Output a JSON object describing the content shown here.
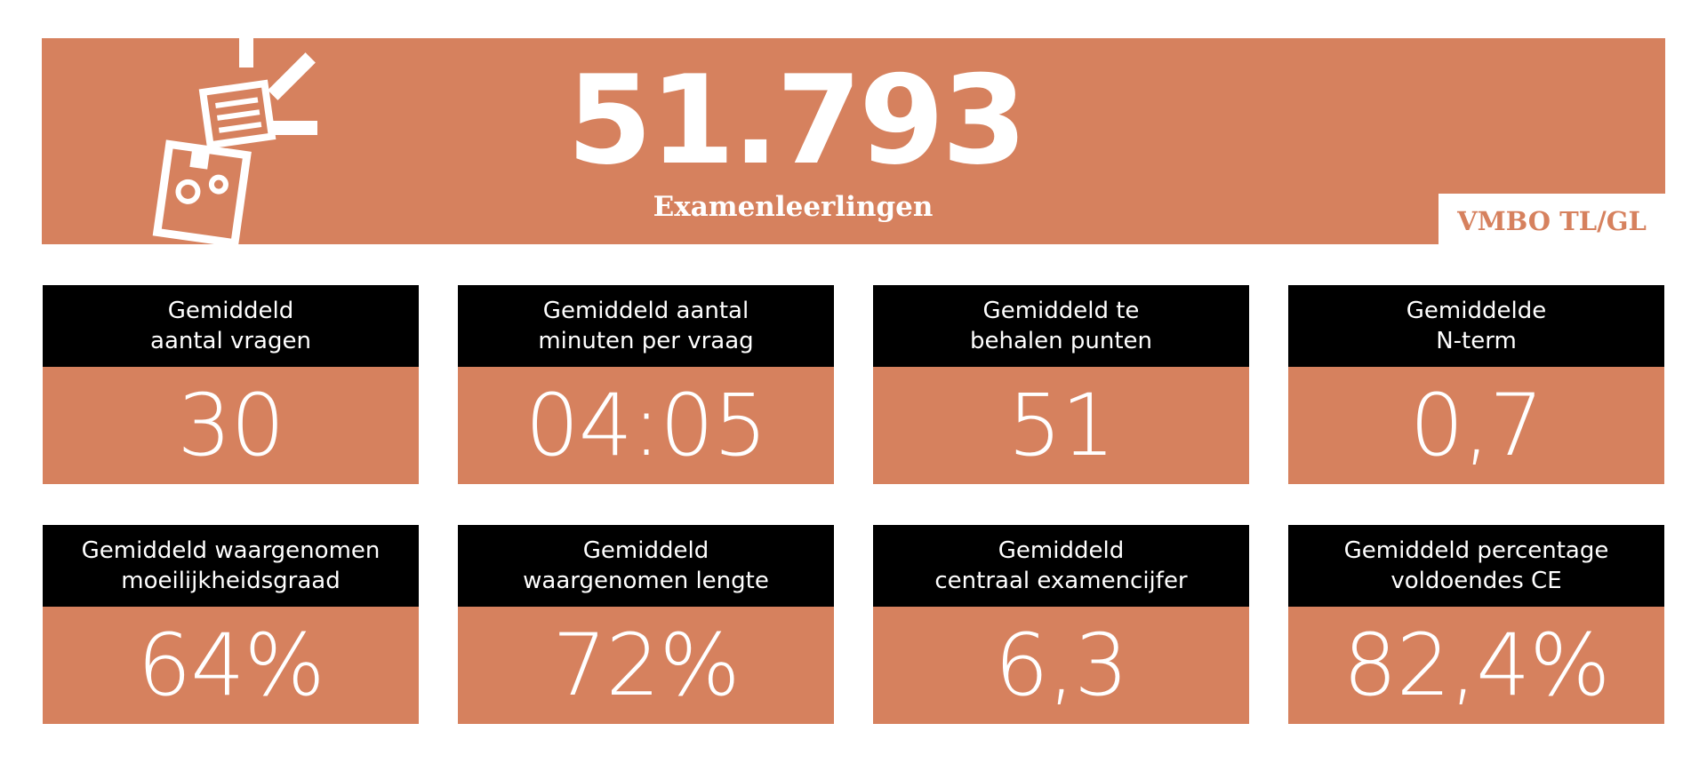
{
  "banner": {
    "number": "51.793",
    "label": "Examenleerlingen",
    "level": "VMBO TL/GL",
    "icon": "exam-paper-icon"
  },
  "cards": [
    {
      "title": "Gemiddeld\naantal vragen",
      "value": "30"
    },
    {
      "title": "Gemiddeld aantal\nminuten per vraag",
      "value": "04:05"
    },
    {
      "title": "Gemiddeld te\nbehalen punten",
      "value": "51"
    },
    {
      "title": "Gemiddelde\nN-term",
      "value": "0,7"
    },
    {
      "title": "Gemiddeld waargenomen\nmoeilijkheidsgraad",
      "value": "64%"
    },
    {
      "title": "Gemiddeld\nwaargenomen lengte",
      "value": "72%"
    },
    {
      "title": "Gemiddeld\ncentraal examencijfer",
      "value": "6,3"
    },
    {
      "title": "Gemiddeld percentage\nvoldoendes CE",
      "value": "82,4%"
    }
  ],
  "colors": {
    "accent": "#d6815e",
    "header": "#000000"
  }
}
